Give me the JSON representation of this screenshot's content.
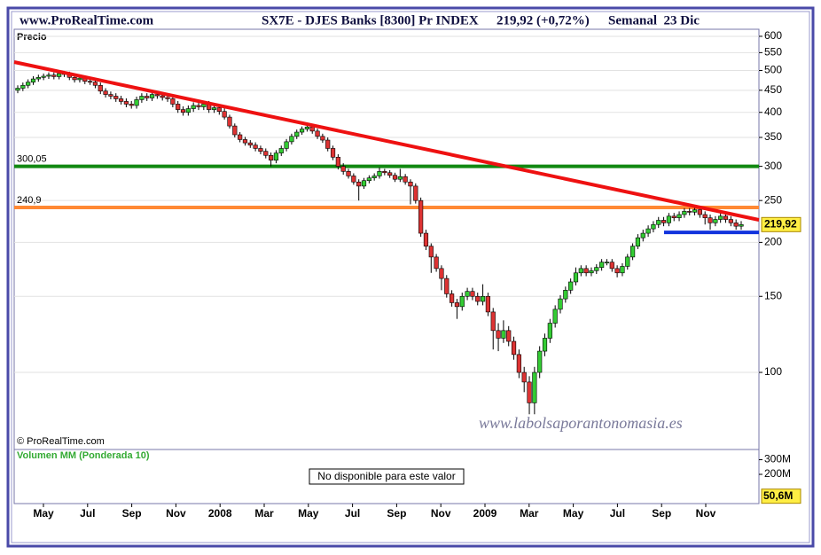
{
  "chart_data": {
    "type": "candlestick",
    "site": "www.ProRealTime.com",
    "title": "SX7E - DJES Banks [8300] Pr INDEX",
    "price_text": "219,92 (+0,72%)",
    "period": "Semanal  23 Dic",
    "y_label": "Precio",
    "copyright": "© ProRealTime.com",
    "watermark": "www.labolsaporantonomasia.es",
    "log_scale": true,
    "grid": true,
    "ylim": [
      66.3,
      623
    ],
    "yticks": [
      600,
      550,
      500,
      450,
      400,
      350,
      300,
      250,
      200,
      150,
      100
    ],
    "x_labels": [
      "May",
      "Jul",
      "Sep",
      "Nov",
      "2008",
      "Mar",
      "May",
      "Jul",
      "Sep",
      "Nov",
      "2009",
      "Mar",
      "May",
      "Jul",
      "Sep",
      "Nov"
    ],
    "up_color": "#33cc33",
    "down_color": "#dd3333",
    "candles": {
      "open": [
        450,
        455,
        462,
        470,
        478,
        482,
        485,
        488,
        484,
        492,
        490,
        482,
        476,
        480,
        472,
        470,
        462,
        448,
        440,
        436,
        430,
        424,
        418,
        415,
        428,
        436,
        432,
        440,
        437,
        433,
        430,
        418,
        406,
        400,
        408,
        415,
        412,
        418,
        406,
        410,
        402,
        390,
        372,
        355,
        346,
        340,
        336,
        330,
        325,
        318,
        310,
        322,
        330,
        342,
        352,
        360,
        366,
        370,
        362,
        352,
        345,
        330,
        315,
        300,
        292,
        285,
        276,
        270,
        278,
        282,
        285,
        292,
        290,
        286,
        280,
        284,
        276,
        270,
        250,
        210,
        196,
        185,
        174,
        165,
        152,
        145,
        142,
        150,
        154,
        150,
        146,
        150,
        138,
        125,
        120,
        125,
        118,
        110,
        100,
        95,
        85,
        100,
        112,
        120,
        130,
        140,
        148,
        155,
        162,
        170,
        174,
        170,
        172,
        175,
        180,
        180,
        174,
        170,
        176,
        185,
        196,
        205,
        210,
        215,
        220,
        225,
        222,
        230,
        228,
        232,
        236,
        235,
        238,
        232,
        228,
        222,
        226,
        230,
        226,
        222,
        218
      ],
      "high": [
        462,
        469,
        477,
        485,
        489,
        492,
        495,
        495,
        499,
        499,
        497,
        489,
        487,
        487,
        479,
        477,
        469,
        455,
        447,
        443,
        437,
        431,
        425,
        435,
        443,
        443,
        447,
        447,
        444,
        440,
        437,
        425,
        413,
        415,
        422,
        422,
        425,
        425,
        417,
        417,
        409,
        395,
        377,
        360,
        351,
        345,
        341,
        335,
        330,
        323,
        327,
        335,
        347,
        357,
        365,
        371,
        378,
        375,
        367,
        357,
        350,
        335,
        320,
        305,
        296,
        289,
        280,
        282,
        286,
        289,
        298,
        296,
        294,
        290,
        296,
        288,
        280,
        274,
        254,
        214,
        199,
        188,
        177,
        168,
        155,
        148,
        153,
        157,
        157,
        153,
        160,
        153,
        141,
        130,
        132,
        128,
        121,
        113,
        103,
        98,
        103,
        115,
        123,
        133,
        143,
        151,
        158,
        165,
        175,
        177,
        177,
        175,
        178,
        183,
        183,
        183,
        177,
        179,
        188,
        199,
        209,
        214,
        219,
        224,
        229,
        229,
        234,
        234,
        236,
        240,
        240,
        242,
        242,
        236,
        232,
        230,
        234,
        234,
        230,
        226,
        224
      ],
      "low": [
        443,
        448,
        455,
        463,
        471,
        475,
        478,
        477,
        477,
        483,
        475,
        469,
        469,
        465,
        463,
        455,
        441,
        433,
        429,
        423,
        417,
        411,
        408,
        408,
        421,
        425,
        425,
        430,
        426,
        423,
        411,
        399,
        393,
        393,
        401,
        405,
        405,
        399,
        399,
        395,
        385,
        367,
        350,
        341,
        335,
        331,
        325,
        320,
        313,
        300,
        305,
        317,
        325,
        337,
        347,
        355,
        361,
        357,
        347,
        340,
        325,
        310,
        295,
        287,
        281,
        272,
        250,
        266,
        274,
        278,
        281,
        286,
        282,
        276,
        276,
        272,
        245,
        246,
        206,
        192,
        170,
        171,
        155,
        149,
        142,
        133,
        139,
        147,
        147,
        143,
        143,
        135,
        113,
        112,
        117,
        115,
        107,
        97,
        90,
        80,
        80,
        97,
        109,
        117,
        127,
        137,
        145,
        152,
        159,
        167,
        167,
        167,
        169,
        172,
        177,
        171,
        166,
        167,
        173,
        182,
        193,
        201,
        206,
        211,
        216,
        218,
        218,
        224,
        224,
        228,
        231,
        231,
        228,
        220,
        214,
        218,
        222,
        222,
        218,
        214,
        214
      ],
      "close": [
        455,
        462,
        470,
        478,
        482,
        485,
        488,
        484,
        492,
        490,
        482,
        476,
        480,
        472,
        470,
        462,
        448,
        440,
        436,
        430,
        424,
        418,
        415,
        428,
        436,
        432,
        440,
        437,
        433,
        430,
        418,
        406,
        400,
        408,
        415,
        412,
        418,
        406,
        410,
        402,
        390,
        372,
        355,
        346,
        340,
        336,
        330,
        325,
        318,
        310,
        322,
        330,
        342,
        352,
        360,
        366,
        370,
        362,
        352,
        345,
        330,
        315,
        300,
        292,
        285,
        276,
        270,
        278,
        282,
        285,
        292,
        290,
        286,
        280,
        284,
        276,
        270,
        250,
        210,
        196,
        185,
        174,
        165,
        152,
        145,
        142,
        150,
        154,
        150,
        146,
        150,
        138,
        125,
        120,
        125,
        118,
        110,
        100,
        95,
        85,
        100,
        112,
        120,
        130,
        140,
        148,
        155,
        162,
        170,
        174,
        170,
        172,
        175,
        180,
        180,
        174,
        170,
        176,
        185,
        196,
        205,
        210,
        215,
        220,
        225,
        222,
        230,
        228,
        232,
        236,
        235,
        238,
        232,
        228,
        222,
        226,
        230,
        226,
        222,
        218,
        219.92
      ]
    },
    "trendline": {
      "start": 523,
      "end": 225.5,
      "color": "#ee1111"
    },
    "levels": [
      {
        "value": 300.05,
        "label": "300,05",
        "color": "#118811"
      },
      {
        "value": 240.9,
        "label": "240,9",
        "color": "#ff8833"
      }
    ],
    "support": {
      "value": 211,
      "color": "#1133dd"
    },
    "last": {
      "value": 219.92,
      "label": "219,92"
    },
    "volume": {
      "title": "Volumen MM (Ponderada 10)",
      "message": "No disponible para este valor",
      "ylim": [
        0,
        370000000
      ],
      "yticks": [
        {
          "value": 300000000,
          "label": "300M"
        },
        {
          "value": 200000000,
          "label": "200M"
        }
      ],
      "last": {
        "value": 50600000,
        "label": "50,6M"
      }
    }
  }
}
